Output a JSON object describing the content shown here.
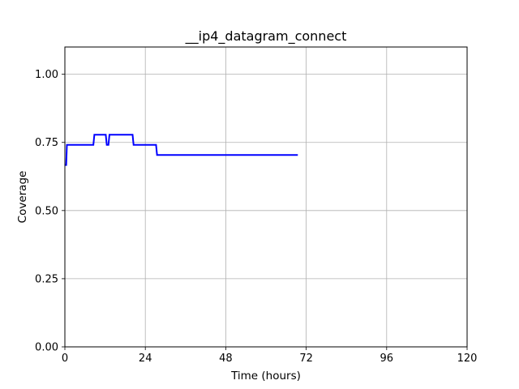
{
  "chart_data": {
    "type": "line",
    "title": "__ip4_datagram_connect",
    "xlabel": "Time (hours)",
    "ylabel": "Coverage",
    "xlim": [
      0,
      120
    ],
    "ylim": [
      0,
      1.1
    ],
    "xticks": [
      0,
      24,
      48,
      72,
      96,
      120
    ],
    "yticks": [
      0.0,
      0.25,
      0.5,
      0.75,
      1.0
    ],
    "xtick_labels": [
      "0",
      "24",
      "48",
      "72",
      "96",
      "120"
    ],
    "ytick_labels": [
      "0.00",
      "0.25",
      "0.50",
      "0.75",
      "1.00"
    ],
    "grid": true,
    "series": [
      {
        "name": "coverage",
        "color": "#0000ff",
        "x": [
          0,
          0.4,
          0.6,
          8.5,
          8.8,
          12.2,
          12.5,
          13.0,
          13.3,
          20.2,
          20.5,
          27.2,
          27.5,
          69.5
        ],
        "y": [
          0.667,
          0.667,
          0.741,
          0.741,
          0.778,
          0.778,
          0.741,
          0.741,
          0.778,
          0.778,
          0.741,
          0.741,
          0.704,
          0.704
        ]
      }
    ]
  }
}
